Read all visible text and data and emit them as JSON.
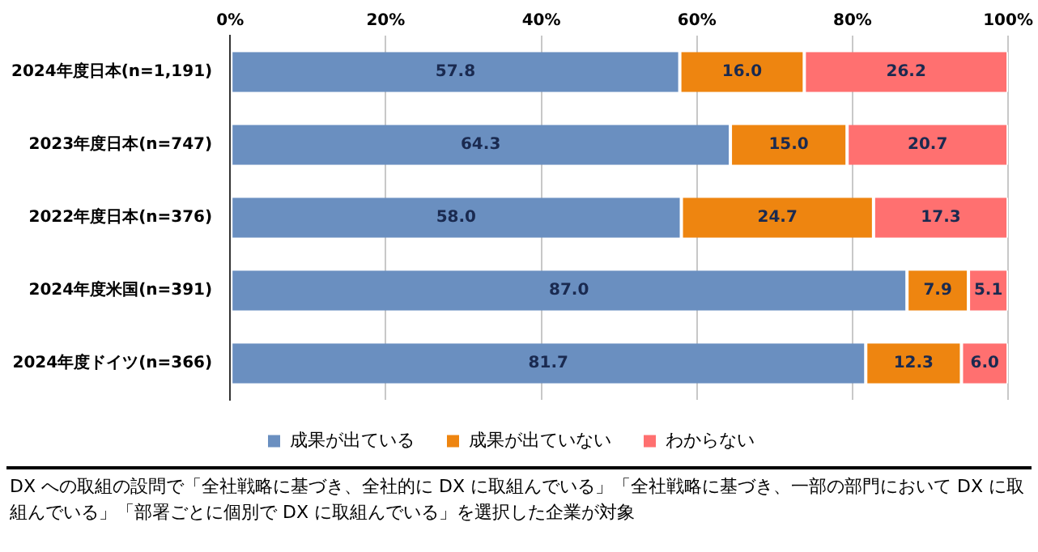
{
  "chart_data": {
    "type": "bar",
    "orientation": "horizontal",
    "stacked": true,
    "categories": [
      "2024年度日本(n=1,191)",
      "2023年度日本(n=747)",
      "2022年度日本(n=376)",
      "2024年度米国(n=391)",
      "2024年度ドイツ(n=366)"
    ],
    "series": [
      {
        "name": "成果が出ている",
        "color": "#6a8fc0",
        "values": [
          57.8,
          64.3,
          58.0,
          87.0,
          81.7
        ],
        "value_labels": [
          "57.8",
          "64.3",
          "58.0",
          "87.0",
          "81.7"
        ]
      },
      {
        "name": "成果が出ていない",
        "color": "#ee8510",
        "values": [
          16.0,
          15.0,
          24.7,
          7.9,
          12.3
        ],
        "value_labels": [
          "16.0",
          "15.0",
          "24.7",
          "7.9",
          "12.3"
        ]
      },
      {
        "name": "わからない",
        "color": "#ff7070",
        "values": [
          26.2,
          20.7,
          17.3,
          5.1,
          6.0
        ],
        "value_labels": [
          "26.2",
          "20.7",
          "17.3",
          "5.1",
          "6.0"
        ]
      }
    ],
    "xlim": [
      0,
      100
    ],
    "xticks": [
      {
        "value": 0,
        "label": "0%"
      },
      {
        "value": 20,
        "label": "20%"
      },
      {
        "value": 40,
        "label": "40%"
      },
      {
        "value": 60,
        "label": "60%"
      },
      {
        "value": 80,
        "label": "80%"
      },
      {
        "value": 100,
        "label": "100%"
      }
    ],
    "grid": "x",
    "legend": "bottom",
    "annotations": [
      "DX への取組の設問で「全社戦略に基づき、全社的に DX に取組んでいる」「全社戦略に基づき、一部の部門において DX に取組んでいる」「部署ごとに個別で DX に取組んでいる」を選択した企業が対象"
    ]
  }
}
